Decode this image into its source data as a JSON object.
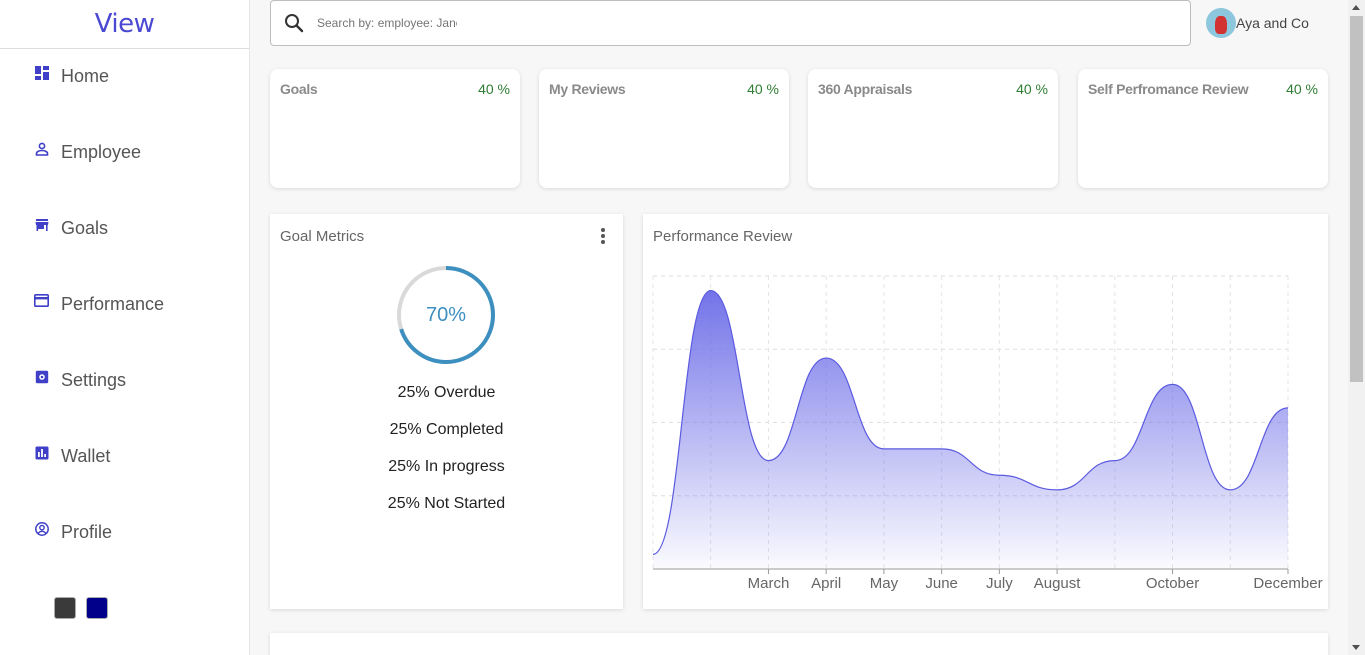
{
  "app": {
    "logo": "View"
  },
  "sidebar": {
    "items": [
      {
        "label": "Home",
        "icon": "dashboard-icon"
      },
      {
        "label": "Employee",
        "icon": "person-icon"
      },
      {
        "label": "Goals",
        "icon": "store-icon"
      },
      {
        "label": "Performance",
        "icon": "credit-card-icon"
      },
      {
        "label": "Settings",
        "icon": "settings-icon"
      },
      {
        "label": "Wallet",
        "icon": "bar-chart-icon"
      },
      {
        "label": "Profile",
        "icon": "account-circle-icon"
      }
    ],
    "swatches": [
      "#3a3a3a",
      "#00008b"
    ]
  },
  "search": {
    "placeholder": "Search by: employee: Jane"
  },
  "user": {
    "name": "Aya and Co"
  },
  "colors": {
    "accent": "#4b48d2",
    "icon": "#3f3fc8",
    "positive": "#2e7d32",
    "ring": "#3d8fc0",
    "chart_line": "#5b5be0"
  },
  "cards": [
    {
      "title": "Goals",
      "value": "40 %"
    },
    {
      "title": "My Reviews",
      "value": "40 %"
    },
    {
      "title": "360 Appraisals",
      "value": "40 %"
    },
    {
      "title": "Self Perfromance Review",
      "value": "40 %"
    }
  ],
  "goal_metrics": {
    "title": "Goal Metrics",
    "progress_label": "70%",
    "progress": 0.7,
    "legend": [
      "25% Overdue",
      "25% Completed",
      "25% In progress",
      "25% Not Started"
    ]
  },
  "performance": {
    "title": "Performance Review"
  },
  "chart_data": {
    "type": "area",
    "x": [
      "",
      "",
      "March",
      "April",
      "May",
      "June",
      "July",
      "August",
      "",
      "October",
      "",
      "December"
    ],
    "values": [
      5,
      95,
      37,
      72,
      41,
      41,
      32,
      27,
      37,
      63,
      27,
      55
    ],
    "ylim": [
      0,
      100
    ],
    "grid": true,
    "title": "",
    "xlabel": "",
    "ylabel": ""
  }
}
